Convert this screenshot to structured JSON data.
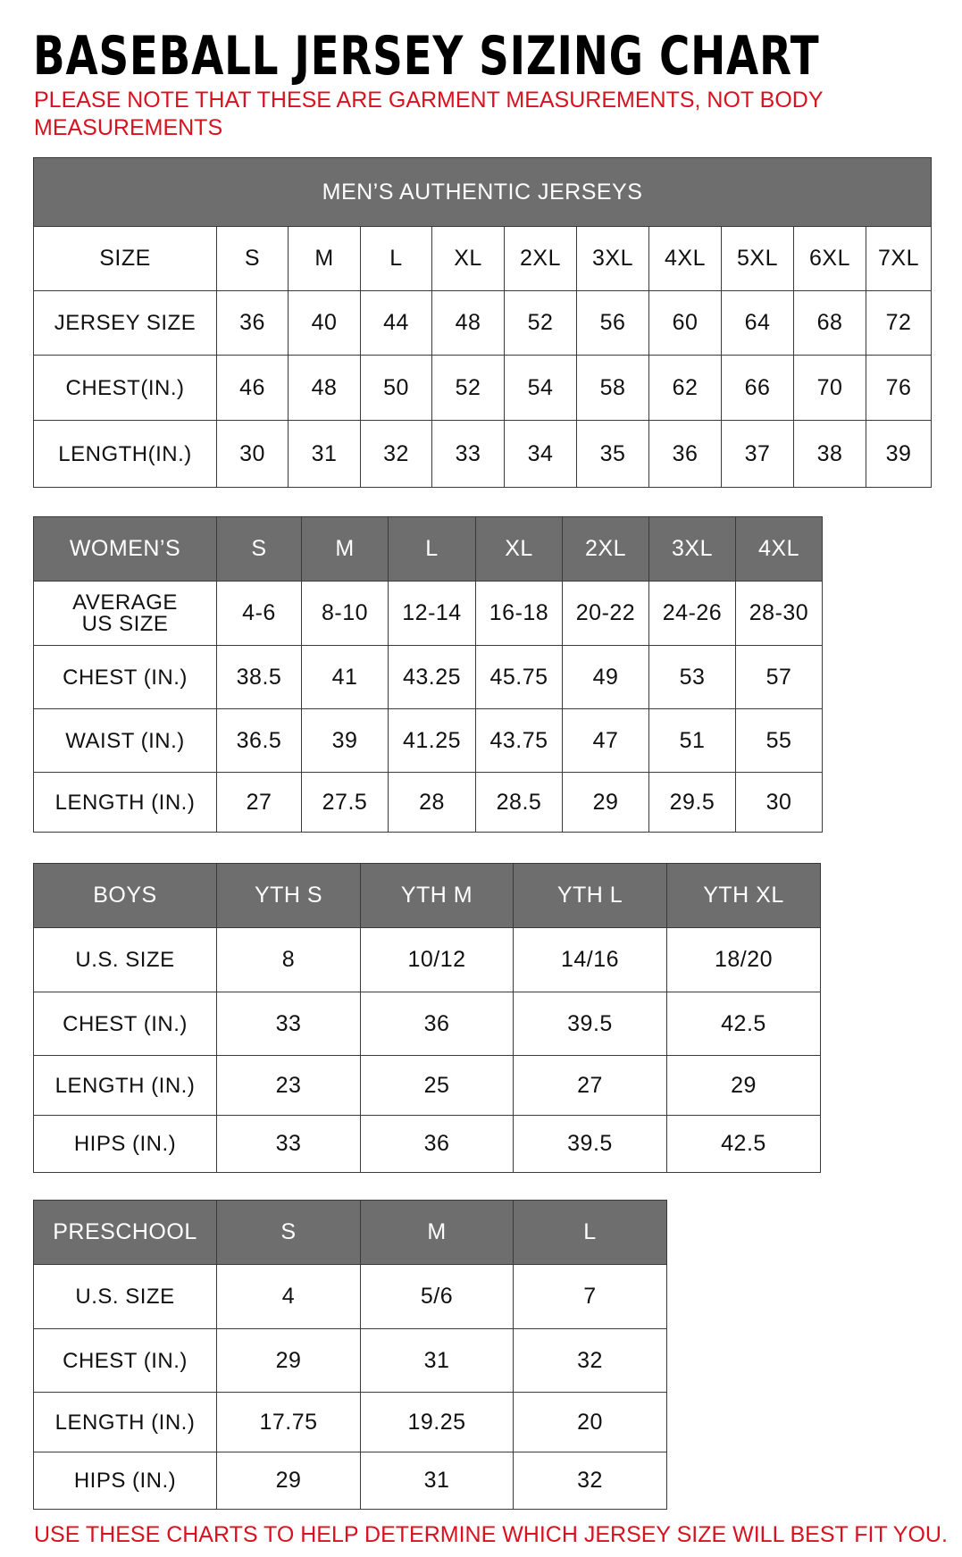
{
  "title": "BASEBALL JERSEY SIZING CHART",
  "note_top": "PLEASE NOTE THAT THESE ARE GARMENT MEASUREMENTS, NOT BODY MEASUREMENTS",
  "note_bottom": "USE THESE CHARTS TO HELP DETERMINE WHICH JERSEY SIZE WILL BEST FIT YOU.",
  "colors": {
    "header_gray": "#6e6e6e",
    "note_red": "#d8121f"
  },
  "tables": [
    {
      "id": "mens",
      "banner": "MEN’S AUTHENTIC JERSEYS",
      "header": [
        "SIZE",
        "S",
        "M",
        "L",
        "XL",
        "2XL",
        "3XL",
        "4XL",
        "5XL",
        "6XL",
        "7XL"
      ],
      "header_dark": false,
      "rows": [
        [
          "JERSEY SIZE",
          "36",
          "40",
          "44",
          "48",
          "52",
          "56",
          "60",
          "64",
          "68",
          "72"
        ],
        [
          "CHEST(IN.)",
          "46",
          "48",
          "50",
          "52",
          "54",
          "58",
          "62",
          "66",
          "70",
          "76"
        ],
        [
          "LENGTH(IN.)",
          "30",
          "31",
          "32",
          "33",
          "34",
          "35",
          "36",
          "37",
          "38",
          "39"
        ]
      ]
    },
    {
      "id": "womens",
      "header": [
        "WOMEN’S",
        "S",
        "M",
        "L",
        "XL",
        "2XL",
        "3XL",
        "4XL"
      ],
      "header_dark": true,
      "rows": [
        [
          "AVERAGE US SIZE",
          "4-6",
          "8-10",
          "12-14",
          "16-18",
          "20-22",
          "24-26",
          "28-30"
        ],
        [
          "CHEST (IN.)",
          "38.5",
          "41",
          "43.25",
          "45.75",
          "49",
          "53",
          "57"
        ],
        [
          "WAIST (IN.)",
          "36.5",
          "39",
          "41.25",
          "43.75",
          "47",
          "51",
          "55"
        ],
        [
          "LENGTH (IN.)",
          "27",
          "27.5",
          "28",
          "28.5",
          "29",
          "29.5",
          "30"
        ]
      ]
    },
    {
      "id": "boys",
      "header": [
        "BOYS",
        "YTH S",
        "YTH M",
        "YTH L",
        "YTH XL"
      ],
      "header_dark": true,
      "rows": [
        [
          "U.S. SIZE",
          "8",
          "10/12",
          "14/16",
          "18/20"
        ],
        [
          "CHEST (IN.)",
          "33",
          "36",
          "39.5",
          "42.5"
        ],
        [
          "LENGTH (IN.)",
          "23",
          "25",
          "27",
          "29"
        ],
        [
          "HIPS (IN.)",
          "33",
          "36",
          "39.5",
          "42.5"
        ]
      ]
    },
    {
      "id": "preschool",
      "header": [
        "PRESCHOOL",
        "S",
        "M",
        "L"
      ],
      "header_dark": true,
      "rows": [
        [
          "U.S. SIZE",
          "4",
          "5/6",
          "7"
        ],
        [
          "CHEST (IN.)",
          "29",
          "31",
          "32"
        ],
        [
          "LENGTH (IN.)",
          "17.75",
          "19.25",
          "20"
        ],
        [
          "HIPS (IN.)",
          "29",
          "31",
          "32"
        ]
      ]
    }
  ]
}
